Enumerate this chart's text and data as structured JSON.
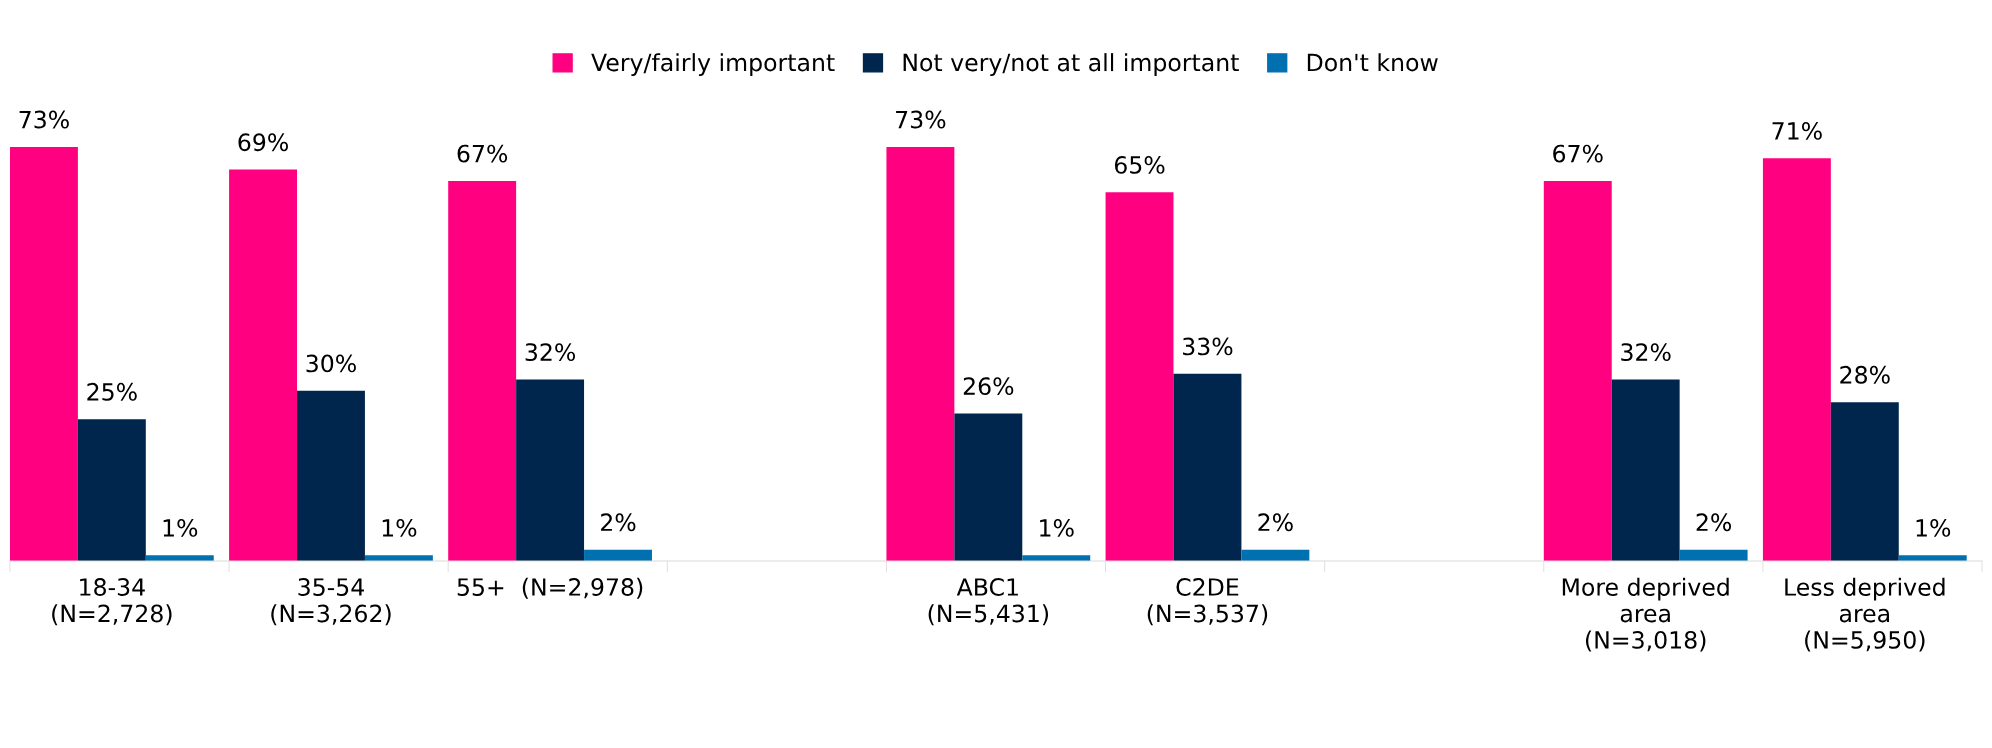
{
  "chart_data": {
    "type": "bar",
    "categories": [
      "18-34\n(N=2,728)",
      "35-54\n(N=3,262)",
      "55+  (N=2,978)",
      null,
      "ABC1\n(N=5,431)",
      "C2DE\n(N=3,537)",
      null,
      "More deprived\narea\n(N=3,018)",
      "Less deprived\narea\n(N=5,950)"
    ],
    "series": [
      {
        "name": "Very/fairly important",
        "color": "#ff0080",
        "values": [
          73,
          69,
          67,
          null,
          73,
          65,
          null,
          67,
          71
        ],
        "value_labels": [
          "73%",
          "69%",
          "67%",
          null,
          "73%",
          "65%",
          null,
          "67%",
          "71%"
        ]
      },
      {
        "name": "Not very/not at all important",
        "color": "#00264d",
        "values": [
          25,
          30,
          32,
          null,
          26,
          33,
          null,
          32,
          28
        ],
        "value_labels": [
          "25%",
          "30%",
          "32%",
          null,
          "26%",
          "33%",
          null,
          "32%",
          "28%"
        ]
      },
      {
        "name": "Don't know",
        "color": "#0070b0",
        "values": [
          1,
          1,
          2,
          null,
          1,
          2,
          null,
          2,
          1
        ],
        "value_labels": [
          "1%",
          "1%",
          "2%",
          null,
          "1%",
          "2%",
          null,
          "2%",
          "1%"
        ]
      }
    ],
    "legend": "top",
    "grid": false
  }
}
